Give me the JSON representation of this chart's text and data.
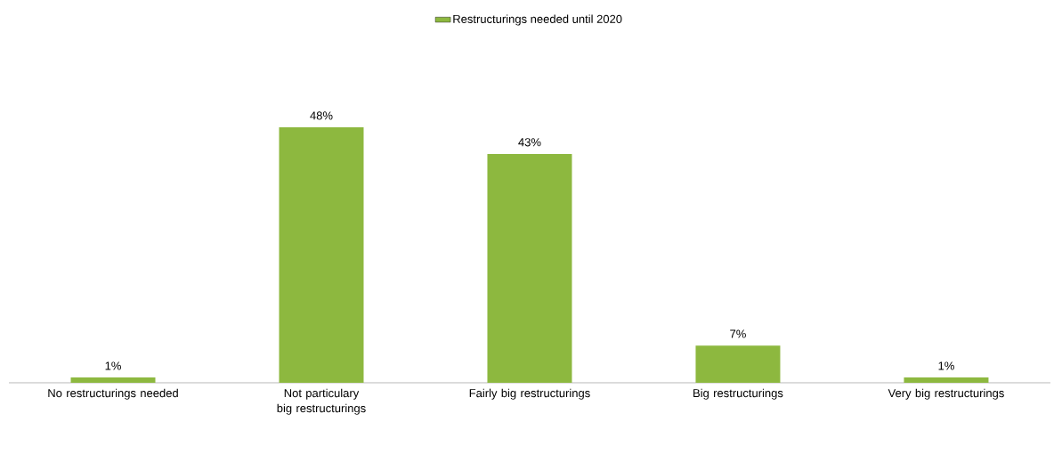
{
  "chart_data": {
    "type": "bar",
    "categories": [
      "No restructurings needed",
      "Not particulary big restructurings",
      "Fairly big restructurings",
      "Big restructurings",
      "Very big restructurings"
    ],
    "series": [
      {
        "name": "Restructurings needed until 2020",
        "color": "#8db83f",
        "values": [
          1,
          48,
          43,
          7,
          1
        ],
        "value_labels": [
          "1%",
          "48%",
          "43%",
          "7%",
          "1%"
        ]
      }
    ],
    "legend": "top"
  }
}
